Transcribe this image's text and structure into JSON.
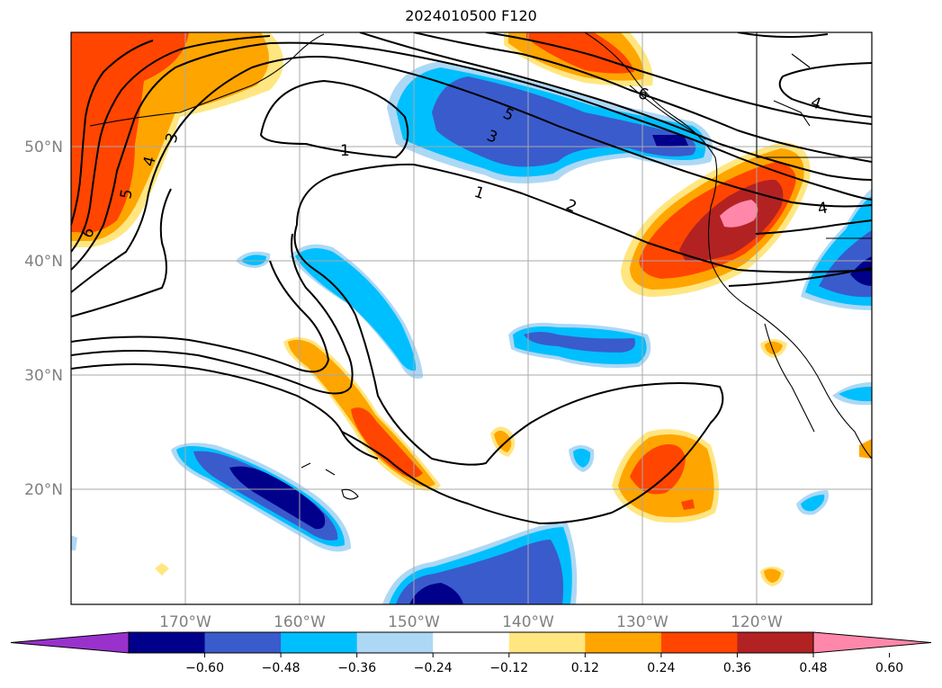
{
  "title": "2024010500 F120",
  "axes": {
    "lon_labels": [
      "170°W",
      "160°W",
      "150°W",
      "140°W",
      "130°W",
      "120°W"
    ],
    "lat_labels": [
      "50°N",
      "40°N",
      "30°N",
      "20°N"
    ],
    "label_color": "#808080"
  },
  "contour_labels": [
    "1",
    "1",
    "2",
    "3",
    "3",
    "4",
    "4",
    "4",
    "5",
    "5",
    "6",
    "6"
  ],
  "colorbar": {
    "ticks": [
      "−0.60",
      "−0.48",
      "−0.36",
      "−0.24",
      "−0.12",
      "0.12",
      "0.24",
      "0.36",
      "0.48",
      "0.60"
    ],
    "colors": [
      "#9932cc",
      "#00008b",
      "#3a5bcc",
      "#00bfff",
      "#add8f5",
      "#ffffff",
      "#ffe680",
      "#ffa500",
      "#ff4500",
      "#b22222",
      "#ff88aa"
    ]
  }
}
